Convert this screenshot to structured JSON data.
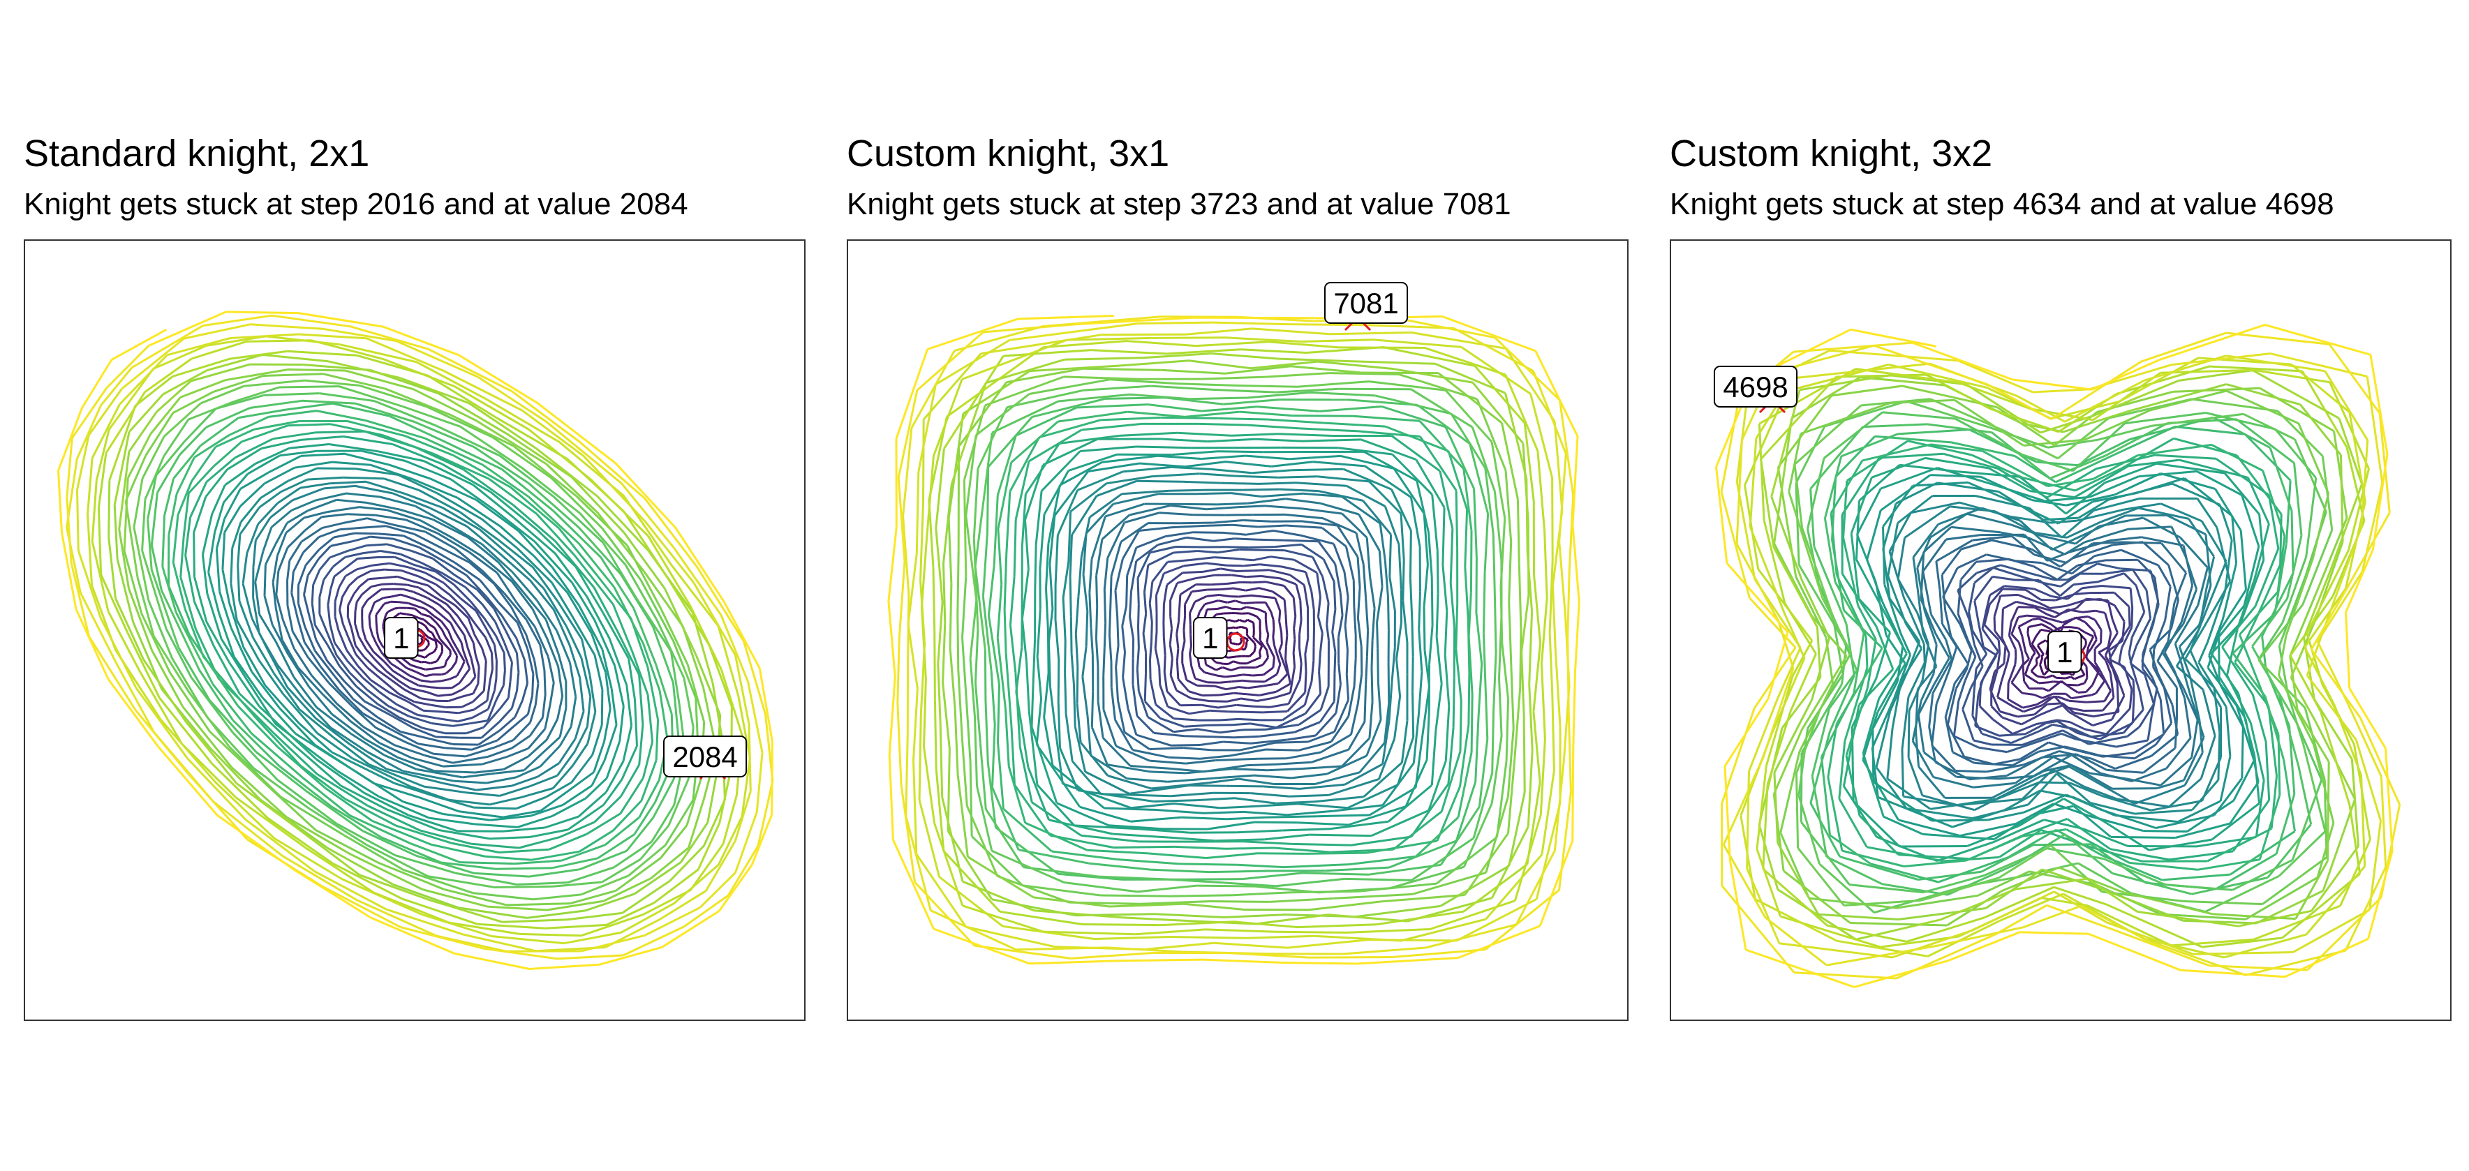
{
  "chart_data": [
    {
      "type": "line",
      "title": "Standard knight, 2x1",
      "subtitle": "Knight gets stuck at step 2016 and at value 2084",
      "steps": 2016,
      "end_value": 2084,
      "start_label": "1",
      "end_label": "2084",
      "colormap": "viridis",
      "axes_visible": false,
      "grid": false
    },
    {
      "type": "line",
      "title": "Custom knight, 3x1",
      "subtitle": "Knight gets stuck at step 3723 and at value 7081",
      "steps": 3723,
      "end_value": 7081,
      "start_label": "1",
      "end_label": "7081",
      "colormap": "viridis",
      "axes_visible": false,
      "grid": false
    },
    {
      "type": "line",
      "title": "Custom knight, 3x2",
      "subtitle": "Knight gets stuck at step 4634 and at value 4698",
      "steps": 4634,
      "end_value": 4698,
      "start_label": "1",
      "end_label": "4698",
      "colormap": "viridis",
      "axes_visible": false,
      "grid": false
    }
  ],
  "colors": {
    "viridis_start": "#440154",
    "viridis_mid": "#21918c",
    "viridis_end": "#fde725",
    "marker": "#e41a1c"
  }
}
